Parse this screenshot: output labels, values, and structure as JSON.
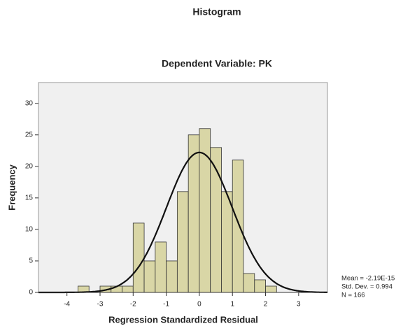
{
  "chart_data": {
    "type": "histogram",
    "title": "Histogram",
    "subtitle": "Dependent Variable: PK",
    "x_label": "Regression Standardized Residual",
    "y_label": "Frequency",
    "bins": [
      -3.667,
      -3.333,
      -3,
      -2.667,
      -2.333,
      -2,
      -1.667,
      -1.333,
      -1,
      -0.667,
      -0.333,
      0,
      0.333,
      0.667,
      1,
      1.333,
      1.667,
      2,
      2.333
    ],
    "values": [
      1,
      0,
      1,
      1,
      1,
      11,
      5,
      8,
      5,
      16,
      25,
      26,
      23,
      16,
      21,
      3,
      2,
      1
    ],
    "color": "#d9d6a6",
    "xlim": [
      -4.86,
      3.87
    ],
    "ylim": [
      0,
      33.3
    ],
    "xticks": [
      -4,
      -3,
      -2,
      -1,
      0,
      1,
      2,
      3
    ],
    "yticks": [
      0,
      5,
      10,
      15,
      20,
      25,
      30
    ],
    "normal_curve": {
      "mean": -2.19e-15,
      "std_dev": 0.994,
      "n": 166
    },
    "annotations": [
      "Mean = -2.19E-15",
      "Std. Dev. = 0.994",
      "N = 166"
    ]
  }
}
